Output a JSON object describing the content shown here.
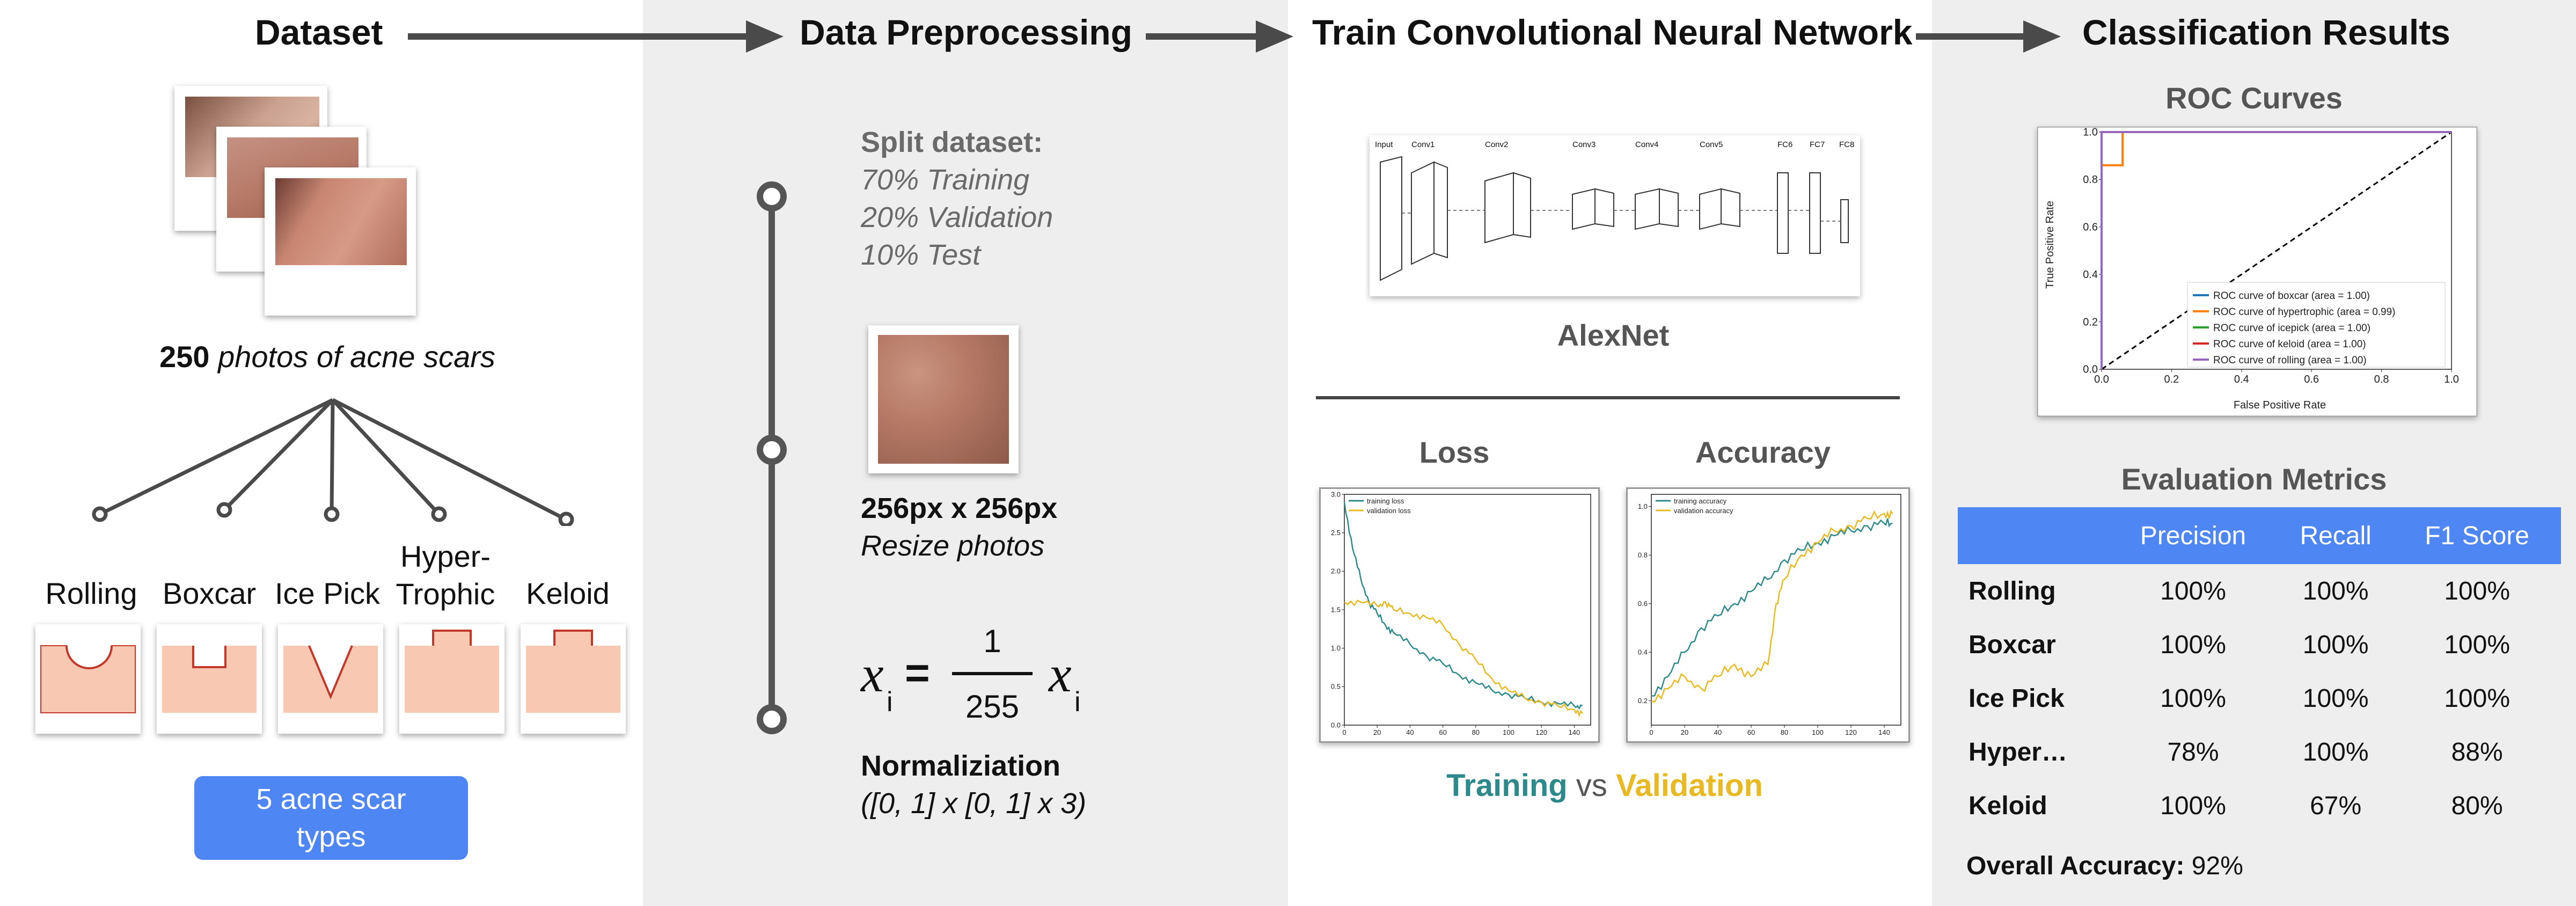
{
  "headers": {
    "dataset": "Dataset",
    "preprocessing": "Data Preprocessing",
    "train": "Train Convolutional Neural Network",
    "results": "Classification Results"
  },
  "dataset": {
    "count": "250",
    "caption": "photos of acne scars",
    "scar_types": [
      {
        "label": "Rolling"
      },
      {
        "label": "Boxcar"
      },
      {
        "label": "Ice Pick"
      },
      {
        "label_line1": "Hyper-",
        "label_line2": "Trophic"
      },
      {
        "label": "Keloid"
      }
    ],
    "types_button": "5 acne scar types"
  },
  "preprocessing": {
    "split_title": "Split dataset:",
    "split_lines": [
      "70% Training",
      "20% Validation",
      "10% Test"
    ],
    "resize_size": "256px x 256px",
    "resize_caption": "Resize photos",
    "formula": {
      "var": "x",
      "sub": "i",
      "numerator": "1",
      "denominator": "255"
    },
    "norm_title": "Normaliziation",
    "norm_range": "([0, 1] x [0, 1] x 3)"
  },
  "train": {
    "network_name": "AlexNet",
    "network_layers": [
      "Input",
      "Conv1",
      "Conv2",
      "Conv3",
      "Conv4",
      "Conv5",
      "FC6",
      "FC7",
      "FC8"
    ],
    "loss_title": "Loss",
    "accuracy_title": "Accuracy",
    "legend_training": "Training",
    "legend_vs": "vs",
    "legend_validation": "Validation",
    "loss_legend": [
      "training loss",
      "validation loss"
    ],
    "acc_legend": [
      "training accuracy",
      "validation accuracy"
    ],
    "colors": {
      "training": "#2e8a8a",
      "validation": "#e8b923"
    }
  },
  "results": {
    "roc_title": "ROC Curves",
    "roc_xlabel": "False Positive Rate",
    "roc_ylabel": "True Positive Rate",
    "roc_legend": [
      "ROC curve of boxcar (area = 1.00)",
      "ROC curve of hypertrophic (area = 0.99)",
      "ROC curve of icepick (area = 1.00)",
      "ROC curve of keloid (area = 1.00)",
      "ROC curve of rolling (area = 1.00)"
    ],
    "metrics_title": "Evaluation Metrics",
    "columns": [
      "Precision",
      "Recall",
      "F1 Score"
    ],
    "rows": [
      {
        "label": "Rolling",
        "precision": "100%",
        "recall": "100%",
        "f1": "100%"
      },
      {
        "label": "Boxcar",
        "precision": "100%",
        "recall": "100%",
        "f1": "100%"
      },
      {
        "label": "Ice Pick",
        "precision": "100%",
        "recall": "100%",
        "f1": "100%"
      },
      {
        "label": "Hyper…",
        "precision": "78%",
        "recall": "100%",
        "f1": "88%"
      },
      {
        "label": "Keloid",
        "precision": "100%",
        "recall": "67%",
        "f1": "80%"
      }
    ],
    "overall_label": "Overall Accuracy:",
    "overall_value": "92%"
  },
  "chart_data": [
    {
      "type": "line",
      "title": "Loss",
      "xlim": [
        0,
        150
      ],
      "ylim": [
        0,
        3.0
      ],
      "xticks": [
        0,
        20,
        40,
        60,
        80,
        100,
        120,
        140
      ],
      "yticks": [
        0.0,
        0.5,
        1.0,
        1.5,
        2.0,
        2.5,
        3.0
      ],
      "series": [
        {
          "name": "training loss",
          "x": [
            0,
            5,
            10,
            15,
            20,
            25,
            30,
            40,
            50,
            60,
            70,
            80,
            90,
            100,
            110,
            120,
            130,
            140,
            145
          ],
          "values": [
            2.9,
            2.3,
            1.9,
            1.6,
            1.45,
            1.3,
            1.2,
            1.05,
            0.9,
            0.8,
            0.65,
            0.55,
            0.45,
            0.4,
            0.35,
            0.3,
            0.28,
            0.25,
            0.25
          ]
        },
        {
          "name": "validation loss",
          "x": [
            0,
            10,
            20,
            25,
            30,
            40,
            50,
            60,
            70,
            80,
            90,
            100,
            110,
            120,
            130,
            140,
            145
          ],
          "values": [
            1.6,
            1.6,
            1.55,
            1.6,
            1.5,
            1.45,
            1.4,
            1.3,
            1.05,
            0.85,
            0.6,
            0.45,
            0.35,
            0.3,
            0.25,
            0.2,
            0.15
          ]
        }
      ]
    },
    {
      "type": "line",
      "title": "Accuracy",
      "xlim": [
        0,
        150
      ],
      "ylim": [
        0.1,
        1.05
      ],
      "xticks": [
        0,
        20,
        40,
        60,
        80,
        100,
        120,
        140
      ],
      "yticks": [
        0.2,
        0.4,
        0.6,
        0.8,
        1.0
      ],
      "series": [
        {
          "name": "training accuracy",
          "x": [
            0,
            10,
            20,
            30,
            40,
            50,
            60,
            70,
            80,
            90,
            100,
            110,
            120,
            130,
            140,
            145
          ],
          "values": [
            0.22,
            0.3,
            0.4,
            0.5,
            0.55,
            0.6,
            0.65,
            0.7,
            0.78,
            0.82,
            0.85,
            0.88,
            0.9,
            0.92,
            0.93,
            0.93
          ]
        },
        {
          "name": "validation accuracy",
          "x": [
            0,
            10,
            20,
            30,
            40,
            50,
            60,
            70,
            75,
            80,
            90,
            100,
            110,
            120,
            130,
            140,
            145
          ],
          "values": [
            0.2,
            0.25,
            0.3,
            0.25,
            0.3,
            0.35,
            0.3,
            0.35,
            0.6,
            0.7,
            0.8,
            0.85,
            0.9,
            0.92,
            0.95,
            0.97,
            0.97
          ]
        }
      ]
    },
    {
      "type": "line",
      "title": "ROC Curves",
      "xlabel": "False Positive Rate",
      "ylabel": "True Positive Rate",
      "xlim": [
        0,
        1
      ],
      "ylim": [
        0,
        1
      ],
      "xticks": [
        0.0,
        0.2,
        0.4,
        0.6,
        0.8,
        1.0
      ],
      "yticks": [
        0.0,
        0.2,
        0.4,
        0.6,
        0.8,
        1.0
      ],
      "series": [
        {
          "name": "boxcar",
          "color": "#1f77b4",
          "x": [
            0,
            0,
            1
          ],
          "values": [
            0,
            1,
            1
          ]
        },
        {
          "name": "hypertrophic",
          "color": "#ff7f0e",
          "x": [
            0,
            0,
            0.06,
            0.06,
            1
          ],
          "values": [
            0,
            0.86,
            0.86,
            1,
            1
          ]
        },
        {
          "name": "icepick",
          "color": "#2ca02c",
          "x": [
            0,
            0,
            1
          ],
          "values": [
            0,
            1,
            1
          ]
        },
        {
          "name": "keloid",
          "color": "#d62728",
          "x": [
            0,
            0,
            1
          ],
          "values": [
            0,
            1,
            1
          ]
        },
        {
          "name": "rolling",
          "color": "#9467bd",
          "x": [
            0,
            0,
            1
          ],
          "values": [
            0,
            1,
            1
          ]
        },
        {
          "name": "chance",
          "color": "#000000",
          "x": [
            0,
            1
          ],
          "values": [
            0,
            1
          ]
        }
      ]
    }
  ]
}
